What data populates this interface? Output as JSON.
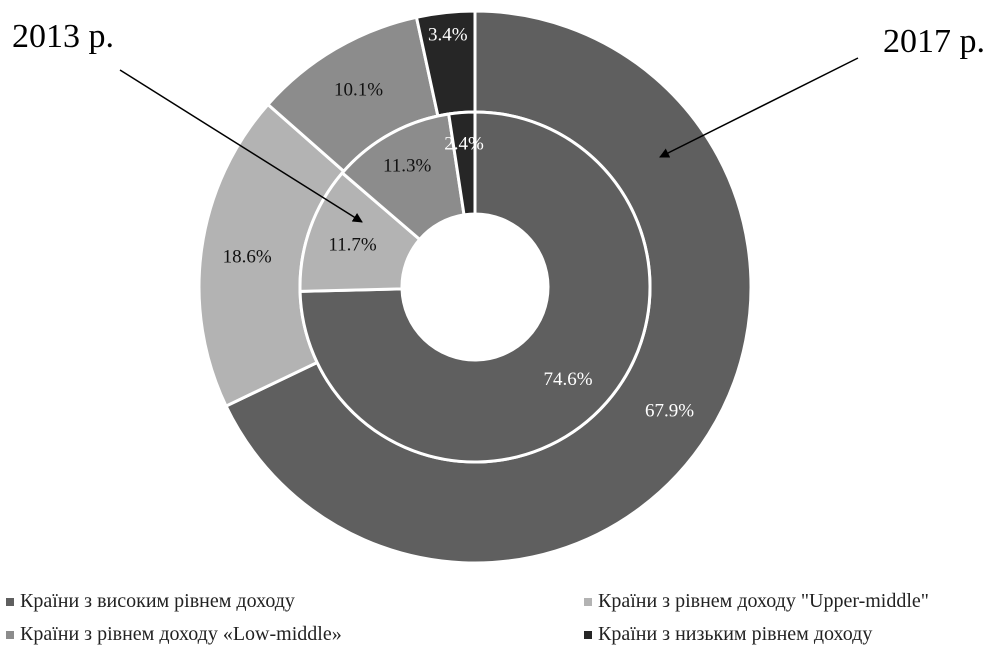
{
  "chart_data": {
    "type": "pie",
    "subtype": "nested-donut",
    "categories": [
      "Країни з високим рівнем доходу",
      "Країни з рівнем доходу \"Upper-middle\"",
      "Країни з рівнем доходу «Low-middle»",
      "Країни з низьким рівнем доходу"
    ],
    "colors": [
      "#5f5f5f",
      "#b3b3b3",
      "#8c8c8c",
      "#262626"
    ],
    "series": [
      {
        "name": "2013 р.",
        "ring": "inner",
        "values": [
          74.6,
          11.7,
          11.3,
          2.4
        ],
        "labels": [
          "74.6%",
          "11.7%",
          "11.3%",
          "2.4%"
        ]
      },
      {
        "name": "2017 р.",
        "ring": "outer",
        "values": [
          67.9,
          18.6,
          10.1,
          3.4
        ],
        "labels": [
          "67.9%",
          "18.6%",
          "10.1%",
          "3.4%"
        ]
      }
    ],
    "annotations": [
      "2013 р.",
      "2017 р."
    ],
    "legend_position": "bottom"
  }
}
